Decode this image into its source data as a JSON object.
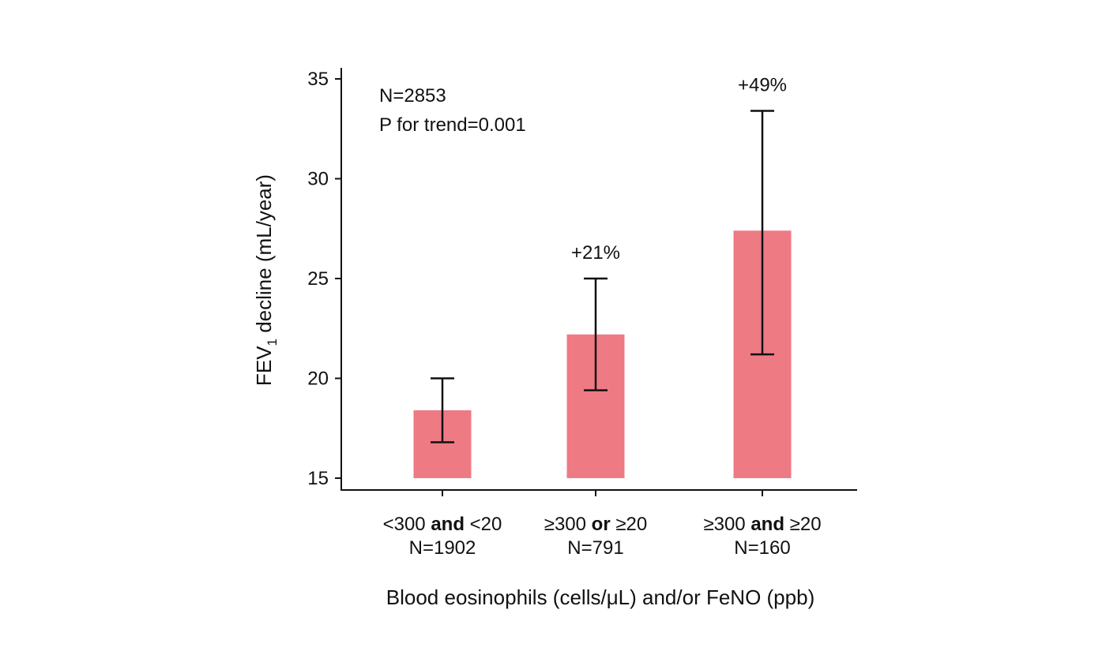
{
  "chart_data": {
    "type": "bar",
    "title": "",
    "xlabel": "Blood eosinophils (cells/μL) and/or FeNO (ppb)",
    "ylabel": {
      "prefix": "FEV",
      "subscript": "1",
      "suffix": " decline (mL/year)"
    },
    "ylim": [
      15,
      35
    ],
    "yticks": [
      15,
      20,
      25,
      30,
      35
    ],
    "grid": false,
    "bar_color": "#ee7a84",
    "categories": [
      {
        "part1": "<300 ",
        "bold": "and",
        "part2": " <20",
        "n": "N=1902"
      },
      {
        "part1": "≥300 ",
        "bold": "or",
        "part2": " ≥20",
        "n": "N=791"
      },
      {
        "part1": "≥300 ",
        "bold": "and",
        "part2": " ≥20",
        "n": "N=160"
      }
    ],
    "values": [
      18.4,
      22.2,
      27.4
    ],
    "error_low": [
      16.8,
      19.4,
      21.2
    ],
    "error_high": [
      20.0,
      25.0,
      33.4
    ],
    "bar_labels": [
      "",
      "+21%",
      "+49%"
    ],
    "annotations": [
      "N=2853",
      "P for trend=0.001"
    ]
  }
}
